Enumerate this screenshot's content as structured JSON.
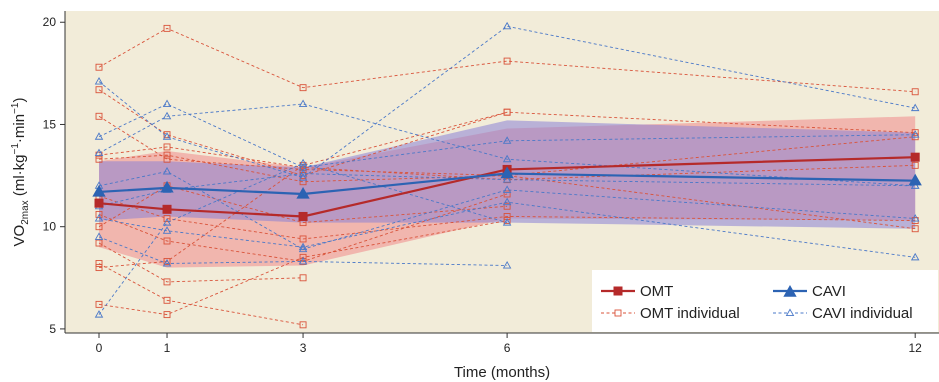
{
  "chart_data": {
    "type": "line",
    "xlabel": "Time (months)",
    "ylabel": {
      "prefix": "VO",
      "subscript": "2max",
      "units_open": " (ml·kg",
      "sup1": "−1",
      "units_mid": "·min",
      "sup2": "−1",
      "units_close": ")"
    },
    "x_ticks": [
      0,
      1,
      3,
      6,
      12
    ],
    "y_ticks": [
      5,
      10,
      15,
      20
    ],
    "xlim": [
      -0.5,
      12.35
    ],
    "ylim": [
      4.8,
      20.55
    ],
    "grid": false,
    "legend_position": "bottom-right",
    "colors": {
      "plot_bg": "#f2ecd9",
      "omt": "#b52a2a",
      "cavi": "#2c63b3",
      "omt_band": "#f08a8a",
      "cavi_band": "#8a82d6",
      "omt_individual": "#d9533a",
      "cavi_individual": "#4a78c8"
    },
    "series": [
      {
        "name": "OMT",
        "marker": "square",
        "x": [
          0,
          1,
          3,
          6,
          12
        ],
        "y": [
          11.15,
          10.85,
          10.5,
          12.8,
          13.4
        ],
        "ci_lower": [
          9.0,
          8.0,
          8.1,
          10.4,
          10.3
        ],
        "ci_upper": [
          13.2,
          13.7,
          12.9,
          14.8,
          15.4
        ]
      },
      {
        "name": "CAVI",
        "marker": "triangle",
        "x": [
          0,
          1,
          3,
          6,
          12
        ],
        "y": [
          11.7,
          11.9,
          11.6,
          12.6,
          12.25
        ],
        "ci_lower": [
          10.3,
          10.5,
          10.2,
          10.2,
          9.9
        ],
        "ci_upper": [
          13.2,
          13.2,
          12.9,
          15.2,
          14.6
        ]
      }
    ],
    "individual": {
      "OMT": [
        [
          17.8,
          19.7,
          16.8,
          18.1,
          16.6
        ],
        [
          16.7,
          14.5,
          12.5,
          15.6,
          14.6
        ],
        [
          15.4,
          13.3,
          12.8,
          12.5,
          14.4
        ],
        [
          13.5,
          13.9,
          12.9,
          12.3,
          13.0
        ],
        [
          13.3,
          13.5,
          12.2,
          12.5,
          9.9
        ],
        [
          11.5,
          10.4,
          9.4,
          10.5,
          10.3
        ],
        [
          10.6,
          9.3,
          8.3,
          11.6,
          null
        ],
        [
          9.2,
          7.3,
          7.5,
          null,
          null
        ],
        [
          8.2,
          6.4,
          5.2,
          null,
          null
        ],
        [
          8.0,
          8.3,
          13.0,
          15.6,
          null
        ],
        [
          6.2,
          5.7,
          8.5,
          10.3,
          null
        ],
        [
          10.0,
          12.0,
          10.2,
          11.0,
          null
        ]
      ],
      "CAVI": [
        [
          17.1,
          14.4,
          12.4,
          19.8,
          15.8
        ],
        [
          14.4,
          16.0,
          12.9,
          14.2,
          14.5
        ],
        [
          13.6,
          15.4,
          16.0,
          13.3,
          12.0
        ],
        [
          12.0,
          12.7,
          8.9,
          11.8,
          10.4
        ],
        [
          11.0,
          11.8,
          12.6,
          12.3,
          12.0
        ],
        [
          10.4,
          9.8,
          9.0,
          11.2,
          8.5
        ],
        [
          9.5,
          8.2,
          8.3,
          8.1,
          null
        ],
        [
          5.7,
          10.2,
          13.1,
          10.2,
          null
        ]
      ]
    }
  },
  "legend": {
    "omt": "OMT",
    "cavi": "CAVI",
    "omt_individual": "OMT individual",
    "cavi_individual": "CAVI individual"
  }
}
